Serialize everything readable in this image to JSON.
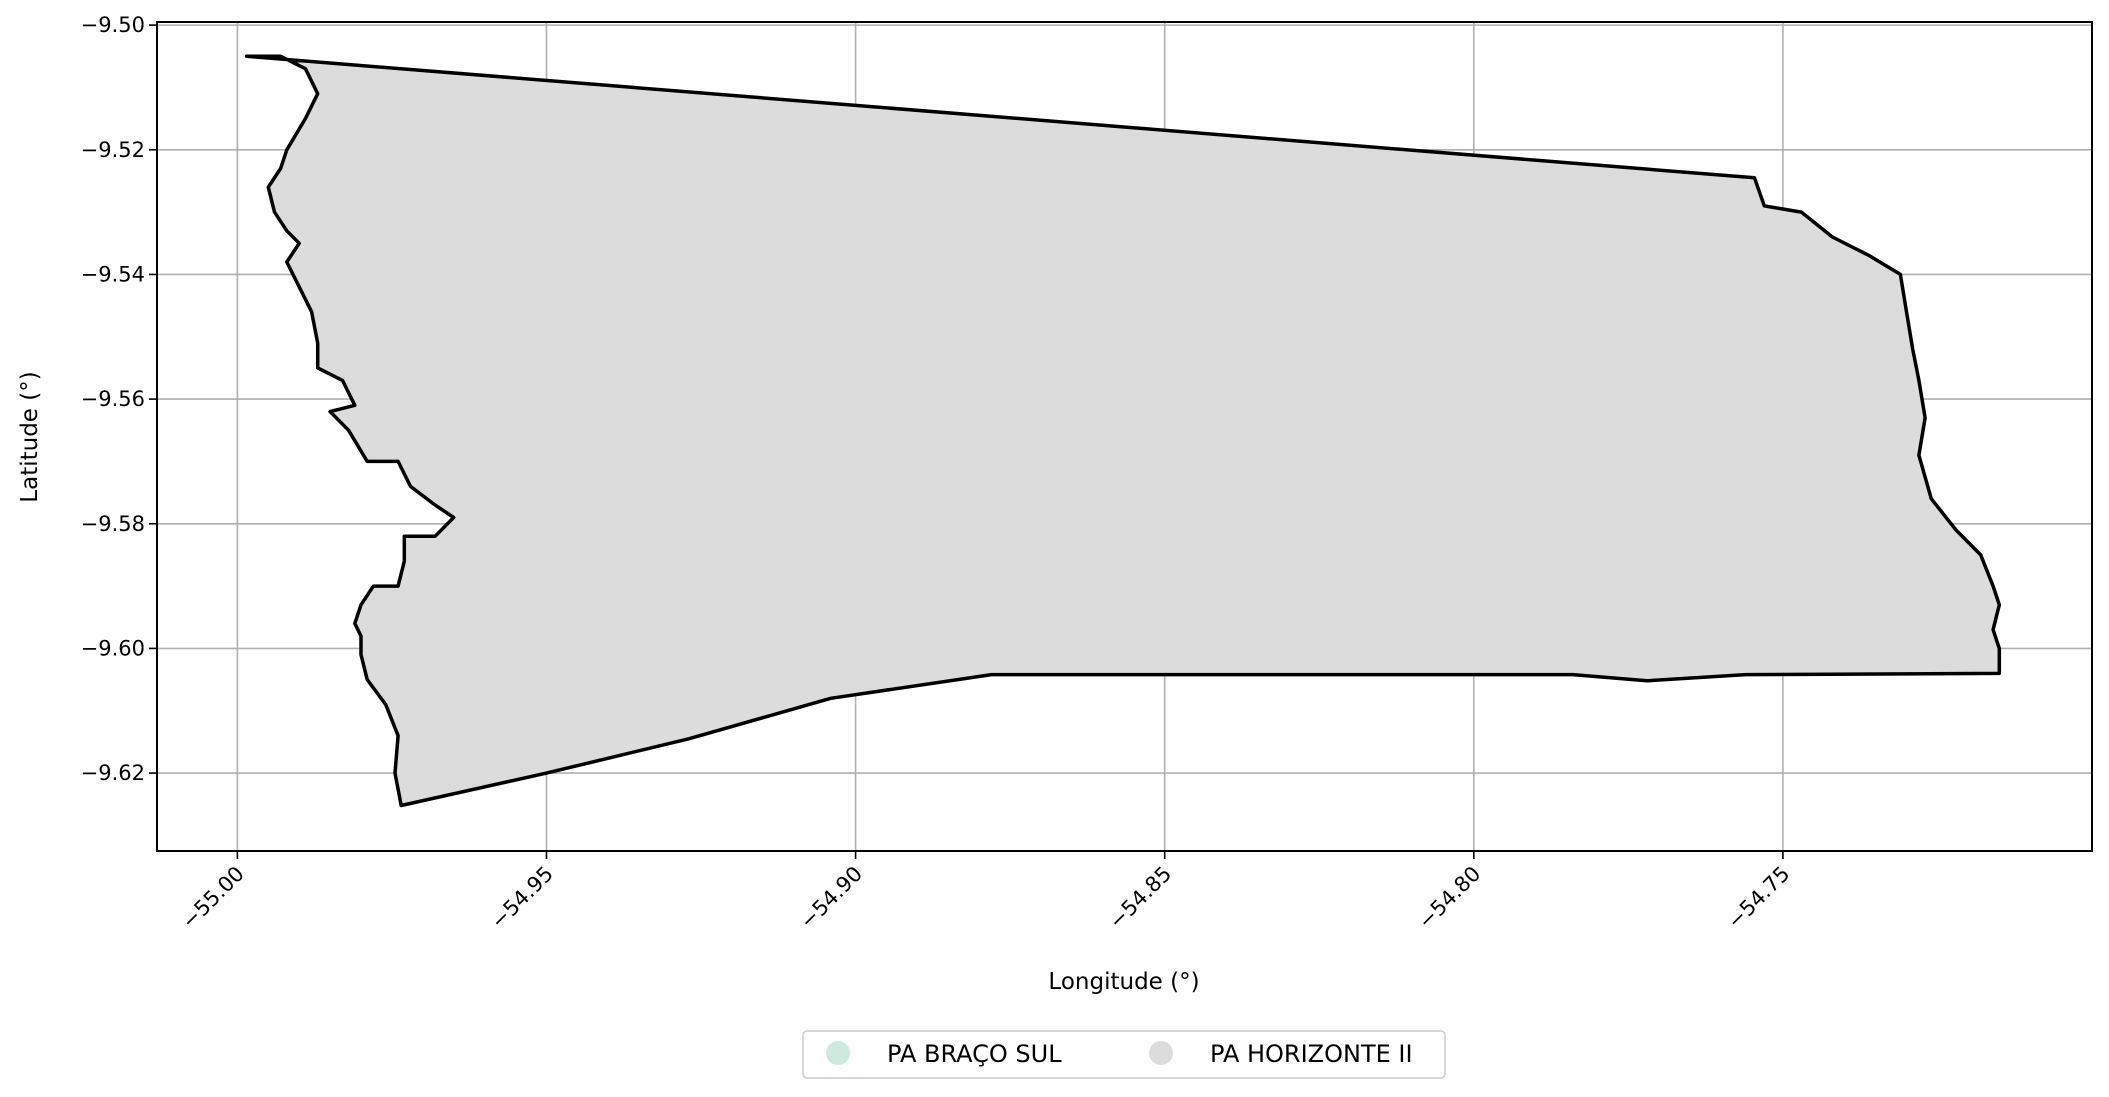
{
  "chart_data": {
    "type": "map",
    "xlabel": "Longitude (°)",
    "ylabel": "Latitude (°)",
    "xlim": [
      -55.013,
      -54.7
    ],
    "ylim": [
      -9.6325,
      -9.4995
    ],
    "xticks": [
      -55.0,
      -54.95,
      -54.9,
      -54.85,
      -54.8,
      -54.75
    ],
    "xtick_labels": [
      "−55.00",
      "−54.95",
      "−54.90",
      "−54.85",
      "−54.80",
      "−54.75"
    ],
    "yticks": [
      -9.5,
      -9.52,
      -9.54,
      -9.56,
      -9.58,
      -9.6,
      -9.62
    ],
    "ytick_labels": [
      "−9.50",
      "−9.52",
      "−9.54",
      "−9.56",
      "−9.58",
      "−9.60",
      "−9.62"
    ],
    "grid": true,
    "legend_position": "bottom-center",
    "legend": [
      {
        "name": "PA BRAÇO SUL",
        "color": "#cdeadc"
      },
      {
        "name": "PA HORIZONTE II",
        "color": "#dcdcdc"
      }
    ],
    "areas": [
      {
        "name": "PA HORIZONTE II",
        "fill": "#dcdcdc",
        "stroke": "#000000",
        "boundary": [
          [
            -54.9985,
            -9.505
          ],
          [
            -54.7546,
            -9.5245
          ],
          [
            -54.753,
            -9.529
          ],
          [
            -54.747,
            -9.53
          ],
          [
            -54.742,
            -9.534
          ],
          [
            -54.736,
            -9.537
          ],
          [
            -54.731,
            -9.54
          ],
          [
            -54.73,
            -9.546
          ],
          [
            -54.729,
            -9.552
          ],
          [
            -54.728,
            -9.557
          ],
          [
            -54.727,
            -9.563
          ],
          [
            -54.728,
            -9.569
          ],
          [
            -54.726,
            -9.576
          ],
          [
            -54.722,
            -9.581
          ],
          [
            -54.718,
            -9.585
          ],
          [
            -54.716,
            -9.59
          ],
          [
            -54.715,
            -9.593
          ],
          [
            -54.716,
            -9.597
          ],
          [
            -54.715,
            -9.6
          ],
          [
            -54.715,
            -9.604
          ],
          [
            -54.756,
            -9.6042
          ],
          [
            -54.772,
            -9.6052
          ],
          [
            -54.784,
            -9.6042
          ],
          [
            -54.878,
            -9.6042
          ],
          [
            -54.904,
            -9.608
          ],
          [
            -54.927,
            -9.6145
          ],
          [
            -54.95,
            -9.62
          ],
          [
            -54.9735,
            -9.6252
          ],
          [
            -54.9745,
            -9.62
          ],
          [
            -54.974,
            -9.614
          ],
          [
            -54.976,
            -9.609
          ],
          [
            -54.979,
            -9.605
          ],
          [
            -54.98,
            -9.601
          ],
          [
            -54.98,
            -9.598
          ],
          [
            -54.981,
            -9.596
          ],
          [
            -54.98,
            -9.593
          ],
          [
            -54.978,
            -9.59
          ],
          [
            -54.974,
            -9.59
          ],
          [
            -54.973,
            -9.586
          ],
          [
            -54.973,
            -9.582
          ],
          [
            -54.968,
            -9.582
          ],
          [
            -54.965,
            -9.579
          ],
          [
            -54.968,
            -9.577
          ],
          [
            -54.972,
            -9.574
          ],
          [
            -54.974,
            -9.57
          ],
          [
            -54.979,
            -9.57
          ],
          [
            -54.982,
            -9.565
          ],
          [
            -54.985,
            -9.562
          ],
          [
            -54.981,
            -9.561
          ],
          [
            -54.983,
            -9.557
          ],
          [
            -54.987,
            -9.555
          ],
          [
            -54.987,
            -9.551
          ],
          [
            -54.988,
            -9.546
          ],
          [
            -54.99,
            -9.542
          ],
          [
            -54.992,
            -9.538
          ],
          [
            -54.99,
            -9.535
          ],
          [
            -54.992,
            -9.533
          ],
          [
            -54.994,
            -9.53
          ],
          [
            -54.995,
            -9.526
          ],
          [
            -54.993,
            -9.523
          ],
          [
            -54.992,
            -9.52
          ],
          [
            -54.989,
            -9.515
          ],
          [
            -54.987,
            -9.511
          ],
          [
            -54.989,
            -9.507
          ],
          [
            -54.993,
            -9.505
          ],
          [
            -54.9985,
            -9.505
          ]
        ]
      }
    ]
  }
}
